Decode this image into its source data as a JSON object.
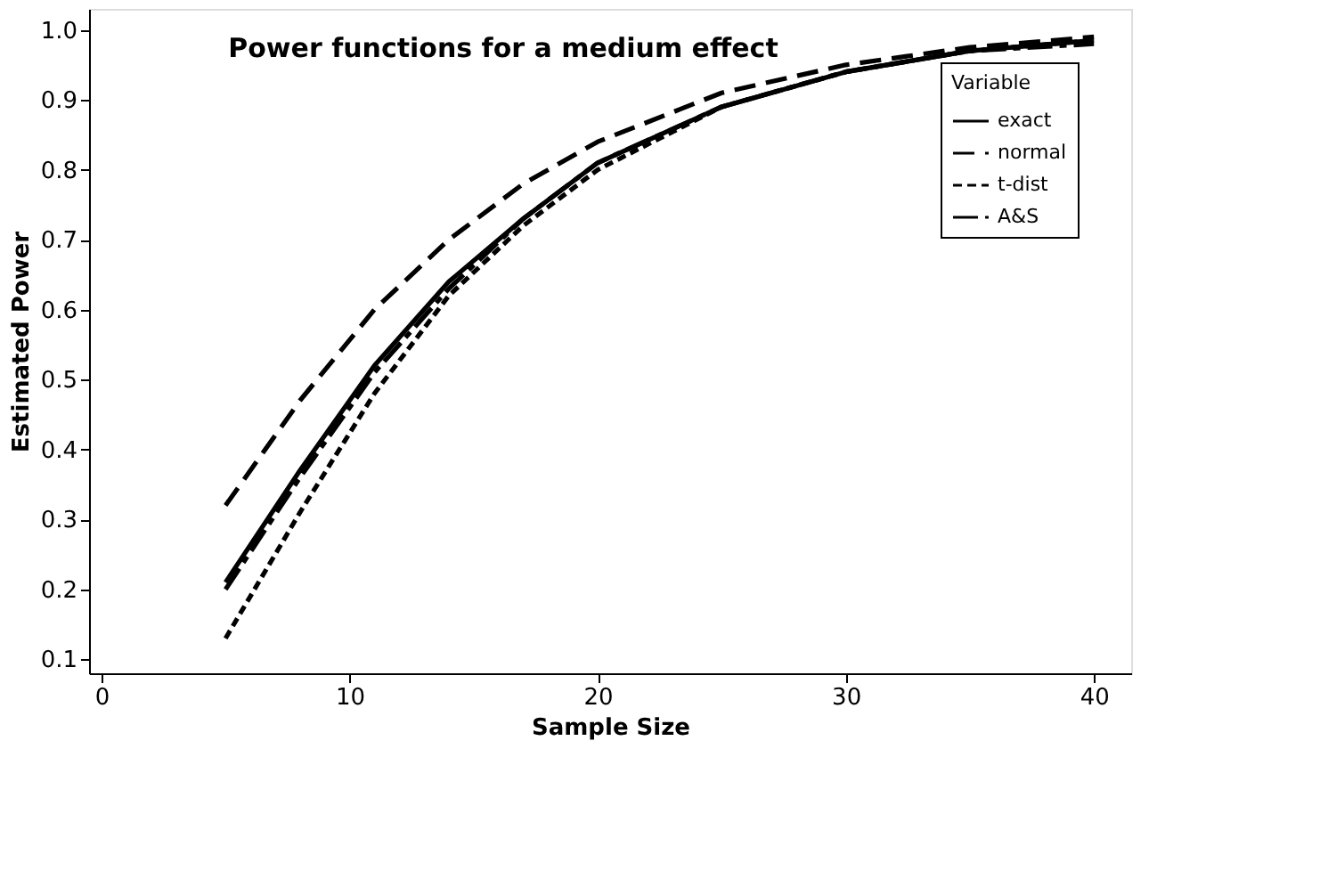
{
  "chart_data": {
    "type": "line",
    "title": "Power functions for a medium effect",
    "xlabel": "Sample Size",
    "ylabel": "Estimated Power",
    "legend_title": "Variable",
    "x": [
      5,
      8,
      11,
      14,
      17,
      20,
      25,
      30,
      35,
      40
    ],
    "series": [
      {
        "name": "exact",
        "color": "#000000",
        "line_style": "solid",
        "values": [
          0.21,
          0.37,
          0.52,
          0.64,
          0.73,
          0.81,
          0.89,
          0.94,
          0.97,
          0.985
        ]
      },
      {
        "name": "normal",
        "color": "#000000",
        "line_style": "dashed",
        "values": [
          0.32,
          0.47,
          0.6,
          0.7,
          0.78,
          0.84,
          0.91,
          0.95,
          0.975,
          0.99
        ]
      },
      {
        "name": "t-dist",
        "color": "#000000",
        "line_style": "dotted",
        "values": [
          0.13,
          0.31,
          0.48,
          0.62,
          0.72,
          0.8,
          0.89,
          0.94,
          0.97,
          0.985
        ]
      },
      {
        "name": "A&S",
        "color": "#000000",
        "line_style": "dashdot",
        "values": [
          0.2,
          0.36,
          0.51,
          0.63,
          0.73,
          0.81,
          0.89,
          0.94,
          0.97,
          0.98
        ]
      }
    ],
    "xlim": [
      -0.5,
      41.5
    ],
    "xticks": [
      0,
      10,
      20,
      30,
      40
    ],
    "ylim": [
      0.08,
      1.03
    ],
    "yticks": [
      0.1,
      0.2,
      0.3,
      0.4,
      0.5,
      0.6,
      0.7,
      0.8,
      0.9,
      {
        "value": 1,
        "label": "1.0"
      }
    ],
    "grid": false,
    "legend": "top right",
    "marker": "none"
  }
}
